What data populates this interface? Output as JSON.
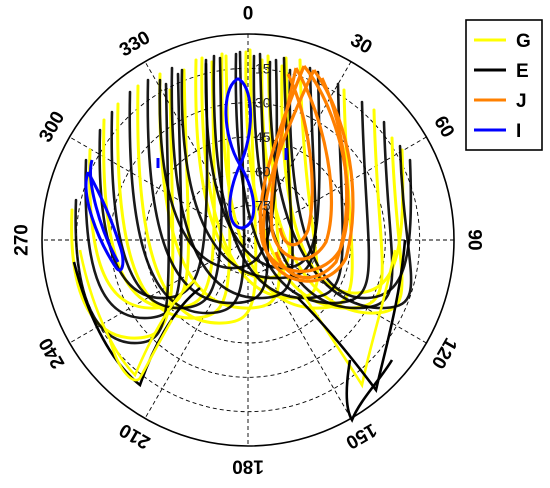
{
  "chart_data": {
    "type": "line",
    "projection": "polar",
    "title": "",
    "angle_ticks": [
      "0",
      "30",
      "60",
      "90",
      "120",
      "150",
      "180",
      "210",
      "240",
      "270",
      "300",
      "330"
    ],
    "radial_ticks": [
      "15",
      "30",
      "45",
      "60",
      "75"
    ],
    "grid": true,
    "legend_position": "top-right",
    "series": [
      {
        "name": "G",
        "color": "#ffff00"
      },
      {
        "name": "E",
        "color": "#000000"
      },
      {
        "name": "J",
        "color": "#ff8000"
      },
      {
        "name": "I",
        "color": "#0000ff"
      }
    ]
  }
}
